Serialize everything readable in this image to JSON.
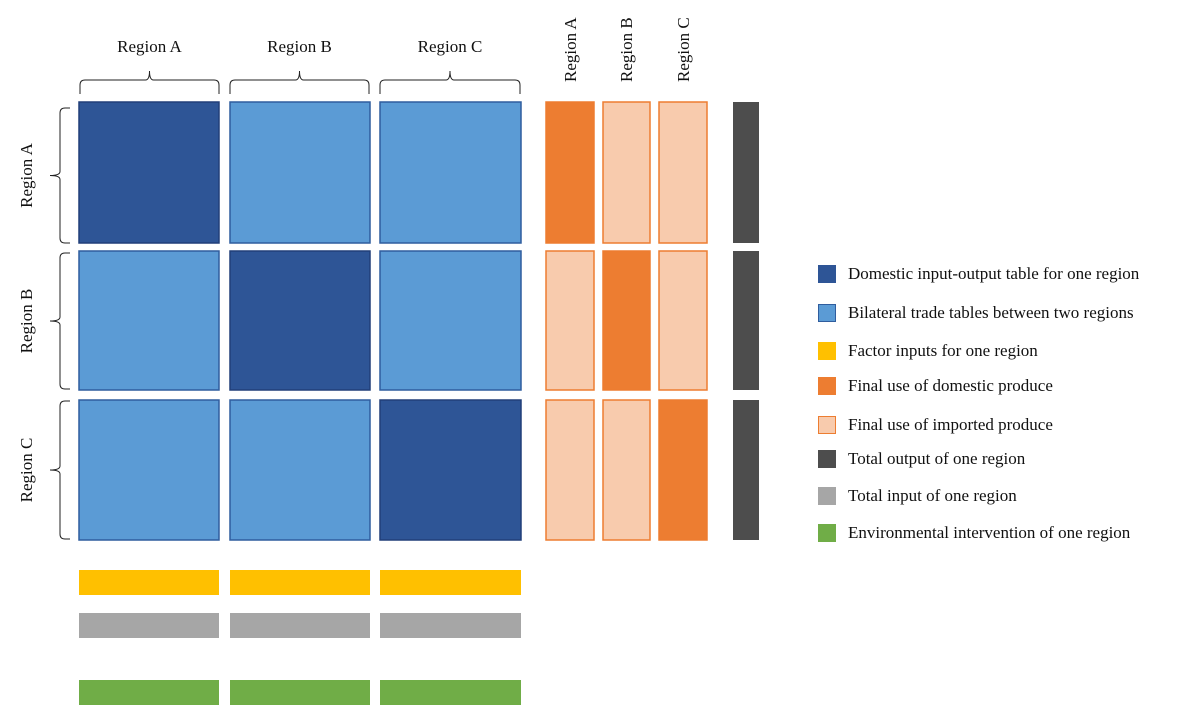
{
  "colors": {
    "domestic_io": "#2E5596",
    "domestic_io_border": "#203F78",
    "bilateral_trade": "#5B9BD5",
    "bilateral_trade_border": "#2F5D9E",
    "factor_inputs": "#FFC000",
    "final_domestic": "#ED7D31",
    "final_imported": "#F8CBAD",
    "final_imported_border": "#ED7D31",
    "total_output": "#4D4D4D",
    "total_input": "#A6A6A6",
    "environmental": "#70AD47"
  },
  "column_headers": [
    "Region A",
    "Region B",
    "Region C"
  ],
  "row_headers": [
    "Region A",
    "Region B",
    "Region C"
  ],
  "final_use_headers": [
    "Region A",
    "Region B",
    "Region C"
  ],
  "legend": [
    {
      "label": "Domestic input-output table for one region",
      "swatch": "domestic_io",
      "icon": "dark-blue-square-icon"
    },
    {
      "label": "Bilateral trade tables between two regions",
      "swatch": "bilateral_trade",
      "icon": "light-blue-square-icon"
    },
    {
      "label": "Factor inputs for one region",
      "swatch": "factor_inputs",
      "icon": "yellow-square-icon"
    },
    {
      "label": "Final use of domestic produce",
      "swatch": "final_domestic",
      "icon": "orange-square-icon"
    },
    {
      "label": "Final use of imported produce",
      "swatch": "final_imported",
      "icon": "light-orange-square-icon"
    },
    {
      "label": "Total output of one region",
      "swatch": "total_output",
      "icon": "dark-gray-square-icon"
    },
    {
      "label": "Total input of one region",
      "swatch": "total_input",
      "icon": "light-gray-square-icon"
    },
    {
      "label": "Environmental intervention of one region",
      "swatch": "environmental",
      "icon": "green-square-icon"
    }
  ]
}
